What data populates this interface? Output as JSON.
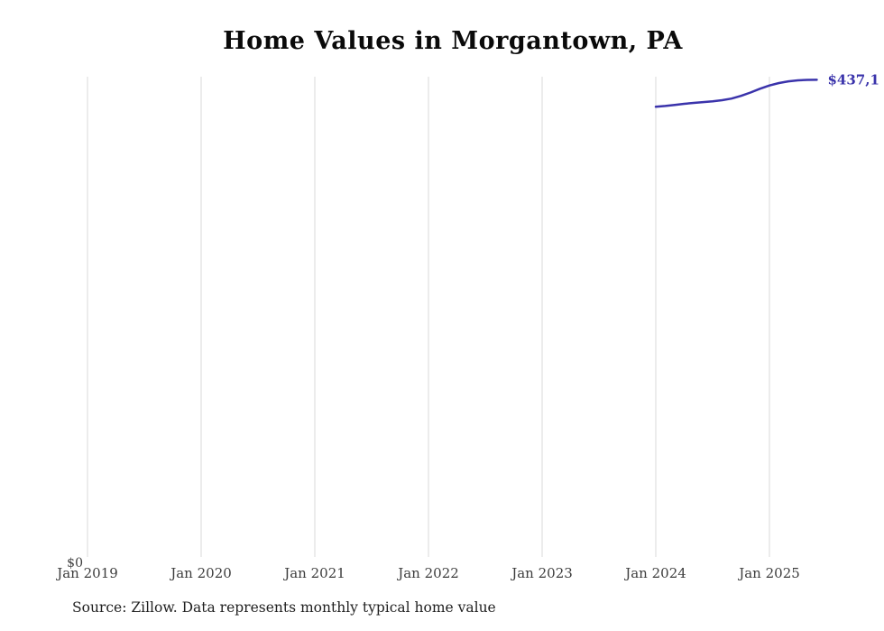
{
  "title": "Home Values in Morgantown, PA",
  "source_note": "Source: Zillow. Data represents monthly typical home value",
  "end_label": "$437,1",
  "colors": {
    "line": "#3a33ab",
    "grid": "#d9d9d9",
    "tick_text": "#3d3d3d",
    "title_text": "#0a0a0a",
    "annotation_text": "#3a33ab"
  },
  "chart_data": {
    "type": "line",
    "title": "Home Values in Morgantown, PA",
    "xlabel": "",
    "ylabel": "",
    "x_ticks": [
      "Jan 2019",
      "Jan 2020",
      "Jan 2021",
      "Jan 2022",
      "Jan 2023",
      "Jan 2024",
      "Jan 2025"
    ],
    "y_tick_labels": [
      "$0"
    ],
    "ylim": [
      0,
      440000
    ],
    "grid": "vertical-only",
    "legend": "none",
    "annotation": "$437,1",
    "series": [
      {
        "name": "Typical home value",
        "x": [
          "Jan 2024",
          "Feb 2024",
          "Mar 2024",
          "Apr 2024",
          "May 2024",
          "Jun 2024",
          "Jul 2024",
          "Aug 2024",
          "Sep 2024",
          "Oct 2024",
          "Nov 2024",
          "Dec 2024",
          "Jan 2025",
          "Feb 2025",
          "Mar 2025",
          "Apr 2025",
          "May 2025",
          "Jun 2025"
        ],
        "x_month_index": [
          60,
          61,
          62,
          63,
          64,
          65,
          66,
          67,
          68,
          69,
          70,
          71,
          72,
          73,
          74,
          75,
          76,
          77
        ],
        "values": [
          412500,
          413200,
          414200,
          415200,
          416000,
          416800,
          417500,
          418500,
          420000,
          422500,
          425500,
          429000,
          432000,
          434200,
          435800,
          436700,
          437100,
          437165
        ]
      }
    ]
  }
}
